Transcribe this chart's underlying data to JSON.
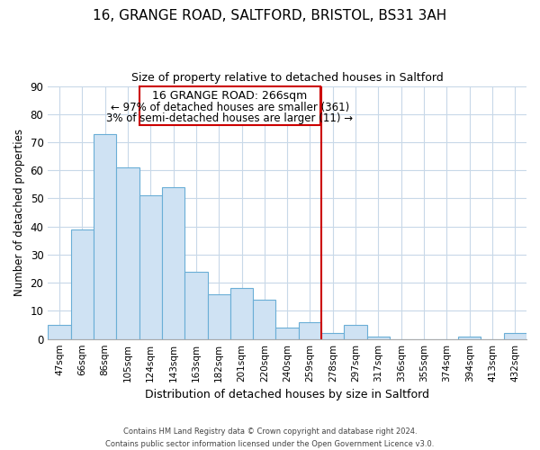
{
  "title1": "16, GRANGE ROAD, SALTFORD, BRISTOL, BS31 3AH",
  "title2": "Size of property relative to detached houses in Saltford",
  "xlabel": "Distribution of detached houses by size in Saltford",
  "ylabel": "Number of detached properties",
  "bar_labels": [
    "47sqm",
    "66sqm",
    "86sqm",
    "105sqm",
    "124sqm",
    "143sqm",
    "163sqm",
    "182sqm",
    "201sqm",
    "220sqm",
    "240sqm",
    "259sqm",
    "278sqm",
    "297sqm",
    "317sqm",
    "336sqm",
    "355sqm",
    "374sqm",
    "394sqm",
    "413sqm",
    "432sqm"
  ],
  "bar_values": [
    5,
    39,
    73,
    61,
    51,
    54,
    24,
    16,
    18,
    14,
    4,
    6,
    2,
    5,
    1,
    0,
    0,
    0,
    1,
    0,
    2
  ],
  "bar_color": "#cfe2f3",
  "bar_edgecolor": "#6aaed6",
  "vline_x": 11.5,
  "vline_color": "#cc0000",
  "ylim": [
    0,
    90
  ],
  "yticks": [
    0,
    10,
    20,
    30,
    40,
    50,
    60,
    70,
    80,
    90
  ],
  "annotation_title": "16 GRANGE ROAD: 266sqm",
  "annotation_line1": "← 97% of detached houses are smaller (361)",
  "annotation_line2": "3% of semi-detached houses are larger (11) →",
  "annotation_box_color": "#ffffff",
  "annotation_box_edge": "#cc0000",
  "footer1": "Contains HM Land Registry data © Crown copyright and database right 2024.",
  "footer2": "Contains public sector information licensed under the Open Government Licence v3.0.",
  "background_color": "#ffffff",
  "grid_color": "#c8d8e8"
}
